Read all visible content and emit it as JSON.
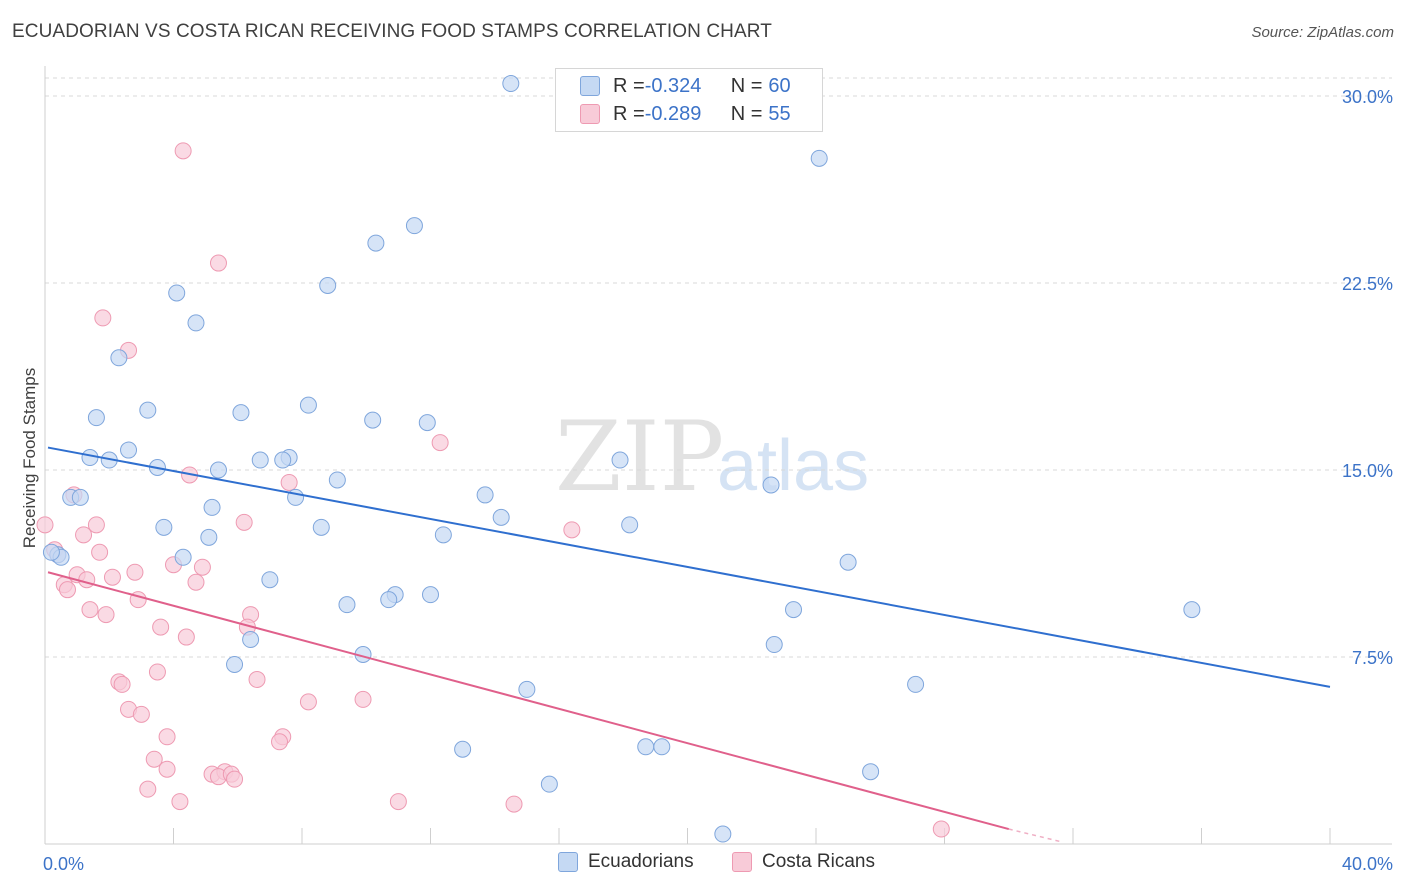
{
  "title": "ECUADORIAN VS COSTA RICAN RECEIVING FOOD STAMPS CORRELATION CHART",
  "source": "Source: ZipAtlas.com",
  "colors": {
    "blue_fill": "#c5d9f3",
    "blue_stroke": "#7fa6dc",
    "blue_line": "#2f6fcf",
    "pink_fill": "#f8cbd8",
    "pink_stroke": "#ee9ab2",
    "pink_line": "#e0608b",
    "axis_label": "#3c73c8",
    "grid": "#d8d8d8"
  },
  "legend": {
    "rows": [
      {
        "r_label": "R = ",
        "r_value": "-0.324",
        "n_label": "N = ",
        "n_value": "60",
        "swatch": "blue"
      },
      {
        "r_label": "R = ",
        "r_value": "-0.289",
        "n_label": "N = ",
        "n_value": "55",
        "swatch": "pink"
      }
    ]
  },
  "bottom_legend": {
    "series1": "Ecuadorians",
    "series2": "Costa Ricans"
  },
  "watermark": {
    "part1": "ZIP",
    "part2": "atlas"
  },
  "chart_data": {
    "type": "scatter",
    "title": "ECUADORIAN VS COSTA RICAN RECEIVING FOOD STAMPS CORRELATION CHART",
    "xlabel": "",
    "ylabel": "Receiving Food Stamps",
    "xlim": [
      0,
      40
    ],
    "ylim": [
      0,
      30
    ],
    "x_tick_labels": [
      "0.0%",
      "40.0%"
    ],
    "y_ticks": [
      7.5,
      15,
      22.5,
      30
    ],
    "y_tick_labels": [
      "7.5%",
      "15.0%",
      "22.5%",
      "30.0%"
    ],
    "grid": "horizontal dashed",
    "legend_position": "top-center",
    "series": [
      {
        "name": "Ecuadorians",
        "r": -0.324,
        "n": 60,
        "trend": {
          "x": [
            0,
            40
          ],
          "y": [
            15.9,
            6.3
          ]
        },
        "points": [
          [
            14.5,
            30.5
          ],
          [
            24.1,
            27.5
          ],
          [
            10.3,
            24.1
          ],
          [
            11.5,
            24.8
          ],
          [
            8.8,
            22.4
          ],
          [
            4.1,
            22.1
          ],
          [
            4.7,
            20.9
          ],
          [
            2.3,
            19.5
          ],
          [
            8.2,
            17.6
          ],
          [
            3.2,
            17.4
          ],
          [
            6.1,
            17.3
          ],
          [
            1.6,
            17.1
          ],
          [
            10.2,
            17.0
          ],
          [
            11.9,
            16.9
          ],
          [
            2.6,
            15.8
          ],
          [
            1.4,
            15.5
          ],
          [
            2.0,
            15.4
          ],
          [
            6.7,
            15.4
          ],
          [
            7.6,
            15.5
          ],
          [
            7.4,
            15.4
          ],
          [
            17.9,
            15.4
          ],
          [
            3.5,
            15.1
          ],
          [
            5.4,
            15.0
          ],
          [
            9.1,
            14.6
          ],
          [
            22.6,
            14.4
          ],
          [
            13.7,
            14.0
          ],
          [
            0.8,
            13.9
          ],
          [
            1.1,
            13.9
          ],
          [
            7.8,
            13.9
          ],
          [
            5.2,
            13.5
          ],
          [
            14.2,
            13.1
          ],
          [
            3.7,
            12.7
          ],
          [
            8.6,
            12.7
          ],
          [
            18.2,
            12.8
          ],
          [
            5.1,
            12.3
          ],
          [
            12.4,
            12.4
          ],
          [
            0.4,
            11.6
          ],
          [
            0.5,
            11.5
          ],
          [
            0.2,
            11.7
          ],
          [
            4.3,
            11.5
          ],
          [
            25.0,
            11.3
          ],
          [
            7.0,
            10.6
          ],
          [
            10.9,
            10.0
          ],
          [
            12.0,
            10.0
          ],
          [
            10.7,
            9.8
          ],
          [
            9.4,
            9.6
          ],
          [
            23.3,
            9.4
          ],
          [
            35.7,
            9.4
          ],
          [
            6.4,
            8.2
          ],
          [
            22.7,
            8.0
          ],
          [
            9.9,
            7.6
          ],
          [
            5.9,
            7.2
          ],
          [
            27.1,
            6.4
          ],
          [
            15.0,
            6.2
          ],
          [
            13.0,
            3.8
          ],
          [
            18.7,
            3.9
          ],
          [
            19.2,
            3.9
          ],
          [
            25.7,
            2.9
          ],
          [
            15.7,
            2.4
          ],
          [
            21.1,
            0.4
          ]
        ]
      },
      {
        "name": "Costa Ricans",
        "r": -0.289,
        "n": 55,
        "trend": {
          "x": [
            0,
            30.0
          ],
          "y": [
            10.9,
            0.6
          ]
        },
        "trend_dashed": {
          "x": [
            30.0,
            31.6
          ],
          "y": [
            0.6,
            0.1
          ]
        },
        "points": [
          [
            4.3,
            27.8
          ],
          [
            5.4,
            23.3
          ],
          [
            1.8,
            21.1
          ],
          [
            2.6,
            19.8
          ],
          [
            12.3,
            16.1
          ],
          [
            4.5,
            14.8
          ],
          [
            7.6,
            14.5
          ],
          [
            0.9,
            14.0
          ],
          [
            1.6,
            12.8
          ],
          [
            6.2,
            12.9
          ],
          [
            16.4,
            12.6
          ],
          [
            1.2,
            12.4
          ],
          [
            0.3,
            11.8
          ],
          [
            1.7,
            11.7
          ],
          [
            0.4,
            11.6
          ],
          [
            0.0,
            12.8
          ],
          [
            4.0,
            11.2
          ],
          [
            4.9,
            11.1
          ],
          [
            2.8,
            10.9
          ],
          [
            1.0,
            10.8
          ],
          [
            2.1,
            10.7
          ],
          [
            1.3,
            10.6
          ],
          [
            0.6,
            10.4
          ],
          [
            4.7,
            10.5
          ],
          [
            0.7,
            10.2
          ],
          [
            2.9,
            9.8
          ],
          [
            1.4,
            9.4
          ],
          [
            1.9,
            9.2
          ],
          [
            6.4,
            9.2
          ],
          [
            3.6,
            8.7
          ],
          [
            6.3,
            8.7
          ],
          [
            4.4,
            8.3
          ],
          [
            3.5,
            6.9
          ],
          [
            2.3,
            6.5
          ],
          [
            2.4,
            6.4
          ],
          [
            6.6,
            6.6
          ],
          [
            8.2,
            5.7
          ],
          [
            9.9,
            5.8
          ],
          [
            2.6,
            5.4
          ],
          [
            3.0,
            5.2
          ],
          [
            3.8,
            4.3
          ],
          [
            7.4,
            4.3
          ],
          [
            7.3,
            4.1
          ],
          [
            3.4,
            3.4
          ],
          [
            3.8,
            3.0
          ],
          [
            5.2,
            2.8
          ],
          [
            5.6,
            2.9
          ],
          [
            5.4,
            2.7
          ],
          [
            5.8,
            2.8
          ],
          [
            5.9,
            2.6
          ],
          [
            3.2,
            2.2
          ],
          [
            4.2,
            1.7
          ],
          [
            11.0,
            1.7
          ],
          [
            14.6,
            1.6
          ],
          [
            27.9,
            0.6
          ]
        ]
      }
    ]
  }
}
